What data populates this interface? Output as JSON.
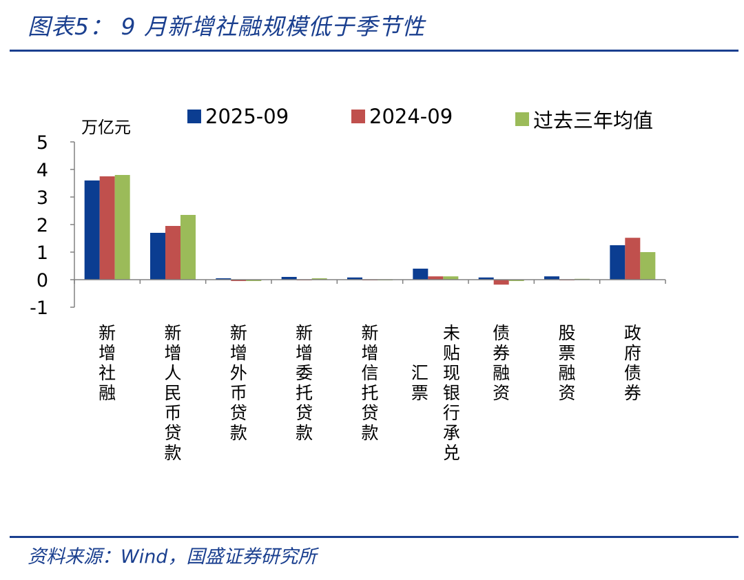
{
  "header": {
    "title": "图表5：  9 月新增社融规模低于季节性"
  },
  "footer": {
    "source": "资料来源：Wind，国盛证券研究所"
  },
  "colors": {
    "accent": "#1a3f8f",
    "series_2025": "#0b3d91",
    "series_2024": "#c0504d",
    "series_avg": "#9bbb59"
  },
  "chart_data": {
    "type": "bar",
    "ylabel": "万亿元",
    "ylim": [
      -1,
      5
    ],
    "yticks": [
      5,
      4,
      3,
      2,
      1,
      0,
      -1
    ],
    "grid": false,
    "legend_position": "top",
    "categories": [
      "新增社融",
      "新增人民币贷款",
      "新增外币贷款",
      "新增委托贷款",
      "新增信托贷款",
      "未贴现银行承兑汇票",
      "债券融资",
      "股票融资",
      "政府债券"
    ],
    "category_lines": [
      [
        "新增社融"
      ],
      [
        "新增人民币贷款"
      ],
      [
        "新增外币贷款"
      ],
      [
        "新增委托贷款"
      ],
      [
        "新增信托贷款"
      ],
      [
        "未贴现银行承兑",
        "汇票"
      ],
      [
        "债券融资"
      ],
      [
        "股票融资"
      ],
      [
        "政府债券"
      ]
    ],
    "series": [
      {
        "name": "2025-09",
        "values": [
          3.6,
          1.7,
          0.05,
          0.1,
          0.08,
          0.4,
          0.08,
          0.12,
          1.25
        ]
      },
      {
        "name": "2024-09",
        "values": [
          3.75,
          1.95,
          -0.05,
          0.0,
          0.0,
          0.12,
          -0.18,
          0.0,
          1.52
        ]
      },
      {
        "name": "过去三年均值",
        "values": [
          3.8,
          2.35,
          -0.05,
          0.05,
          0.0,
          0.12,
          -0.05,
          0.03,
          1.0
        ]
      }
    ]
  }
}
